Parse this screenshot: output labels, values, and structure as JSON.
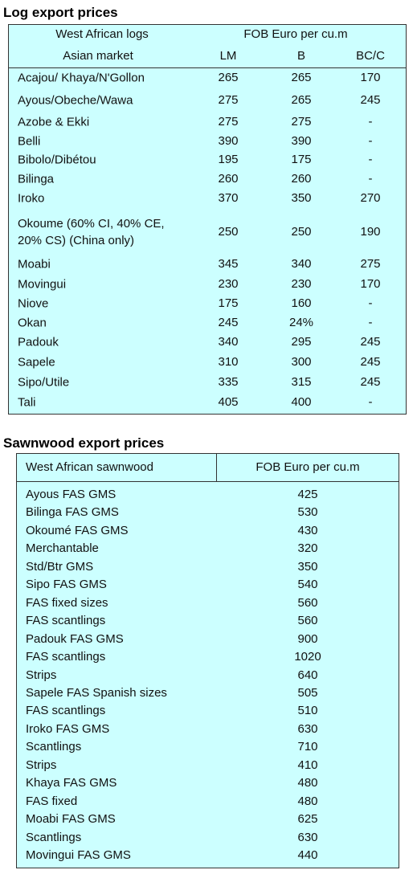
{
  "log_table": {
    "title": "Log export prices",
    "header": {
      "name_top": "West African logs",
      "name_bottom": "Asian market",
      "group": "FOB Euro per cu.m",
      "columns": [
        "LM",
        "B",
        "BC/C"
      ]
    },
    "rows": [
      [
        "Acajou/ Khaya/N'Gollon",
        "265",
        "265",
        "170"
      ],
      [
        "Ayous/Obeche/Wawa",
        "275",
        "265",
        "245"
      ],
      [
        "Azobe & Ekki",
        "275",
        "275",
        "-"
      ],
      [
        "Belli",
        "390",
        "390",
        "-"
      ],
      [
        "Bibolo/Dibétou",
        "195",
        "175",
        "-"
      ],
      [
        "Bilinga",
        "260",
        "260",
        "-"
      ],
      [
        "Iroko",
        "370",
        "350",
        "270"
      ],
      [
        "Okoume (60% CI, 40% CE, 20% CS) (China only)",
        "250",
        "250",
        "190"
      ],
      [
        "Moabi",
        "345",
        "340",
        "275"
      ],
      [
        "Movingui",
        "230",
        "230",
        "170"
      ],
      [
        "Niove",
        "175",
        "160",
        "-"
      ],
      [
        "Okan",
        "245",
        "24%",
        "-"
      ],
      [
        "Padouk",
        "340",
        "295",
        "245"
      ],
      [
        "Sapele",
        "310",
        "300",
        "245"
      ],
      [
        "Sipo/Utile",
        "335",
        "315",
        "245"
      ],
      [
        "Tali",
        "405",
        "400",
        "-"
      ]
    ]
  },
  "sawn_table": {
    "title": "Sawnwood export prices",
    "header": [
      "West African sawnwood",
      "FOB Euro per cu.m"
    ],
    "rows": [
      [
        "Ayous FAS GMS",
        "425"
      ],
      [
        "Bilinga FAS GMS",
        "530"
      ],
      [
        "Okoumé FAS GMS",
        "430"
      ],
      [
        "Merchantable",
        "320"
      ],
      [
        "Std/Btr GMS",
        "350"
      ],
      [
        "Sipo FAS GMS",
        "540"
      ],
      [
        "FAS fixed sizes",
        "560"
      ],
      [
        "FAS scantlings",
        "560"
      ],
      [
        "Padouk FAS GMS",
        "900"
      ],
      [
        "FAS scantlings",
        "1020"
      ],
      [
        "Strips",
        "640"
      ],
      [
        "Sapele FAS Spanish sizes",
        "505"
      ],
      [
        "FAS scantlings",
        "510"
      ],
      [
        "Iroko FAS GMS",
        "630"
      ],
      [
        "Scantlings",
        "710"
      ],
      [
        "Strips",
        "410"
      ],
      [
        "Khaya FAS GMS",
        "480"
      ],
      [
        "FAS fixed",
        "480"
      ],
      [
        "Moabi FAS GMS",
        "625"
      ],
      [
        "Scantlings",
        "630"
      ],
      [
        "Movingui FAS GMS",
        "440"
      ]
    ]
  }
}
